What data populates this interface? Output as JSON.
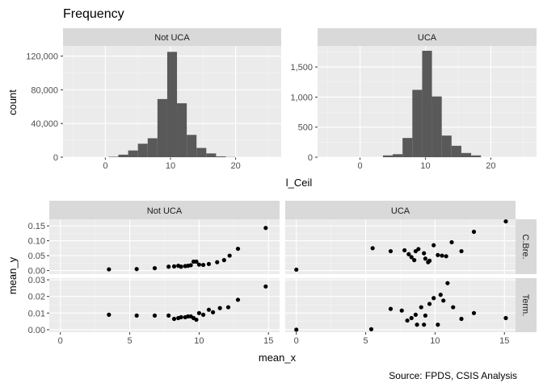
{
  "title": "Frequency",
  "source": "Source: FPDS, CSIS Analysis",
  "chart_data": [
    {
      "type": "bar",
      "subtype": "faceted-histogram",
      "xlabel": "l_Ceil",
      "ylabel": "count",
      "bin_width": 1.5,
      "grid": true,
      "facets": [
        {
          "label": "Not UCA",
          "xlim": [
            -6.5,
            27
          ],
          "ylim": [
            0,
            132000
          ],
          "x_ticks": [
            0,
            10,
            20
          ],
          "x_tick_labels": [
            "0",
            "10",
            "20"
          ],
          "y_ticks": [
            0,
            40000,
            80000,
            120000
          ],
          "y_tick_labels": [
            "0",
            "40,000",
            "80,000",
            "120,000"
          ],
          "bins": [
            {
              "x0": -1,
              "count": 0
            },
            {
              "x0": 0.5,
              "count": 500
            },
            {
              "x0": 2,
              "count": 3000
            },
            {
              "x0": 3.5,
              "count": 8000
            },
            {
              "x0": 5,
              "count": 16000
            },
            {
              "x0": 6.5,
              "count": 22500
            },
            {
              "x0": 8,
              "count": 69000
            },
            {
              "x0": 9.5,
              "count": 125000
            },
            {
              "x0": 11,
              "count": 64000
            },
            {
              "x0": 12.5,
              "count": 26500
            },
            {
              "x0": 14,
              "count": 11000
            },
            {
              "x0": 15.5,
              "count": 4500
            },
            {
              "x0": 17,
              "count": 1000
            },
            {
              "x0": 18.5,
              "count": 200
            },
            {
              "x0": 20,
              "count": 0
            }
          ]
        },
        {
          "label": "UCA",
          "xlim": [
            -6.5,
            27
          ],
          "ylim": [
            0,
            1850
          ],
          "x_ticks": [
            0,
            10,
            20
          ],
          "x_tick_labels": [
            "0",
            "10",
            "20"
          ],
          "y_ticks": [
            0,
            500,
            1000,
            1500
          ],
          "y_tick_labels": [
            "0",
            "500",
            "1,000",
            "1,500"
          ],
          "bins": [
            {
              "x0": 2,
              "count": 0
            },
            {
              "x0": 3.5,
              "count": 30
            },
            {
              "x0": 5,
              "count": 50
            },
            {
              "x0": 6.5,
              "count": 320
            },
            {
              "x0": 8,
              "count": 1120
            },
            {
              "x0": 9.5,
              "count": 1770
            },
            {
              "x0": 11,
              "count": 1010
            },
            {
              "x0": 12.5,
              "count": 360
            },
            {
              "x0": 14,
              "count": 190
            },
            {
              "x0": 15.5,
              "count": 70
            },
            {
              "x0": 17,
              "count": 30
            },
            {
              "x0": 18.5,
              "count": 0
            }
          ]
        }
      ]
    },
    {
      "type": "scatter",
      "subtype": "faceted-grid",
      "xlabel": "mean_x",
      "ylabel": "mean_y",
      "grid": true,
      "column_facets": [
        "Not UCA",
        "UCA"
      ],
      "row_facets": [
        "C.Bre.",
        "Term."
      ],
      "xlim": [
        -0.8,
        15.8
      ],
      "x_ticks": [
        0,
        5,
        10,
        15
      ],
      "x_tick_labels": [
        "0",
        "5",
        "10",
        "15"
      ],
      "rows": [
        {
          "label": "C.Bre.",
          "ylim": [
            -0.012,
            0.172
          ],
          "y_ticks": [
            0.0,
            0.05,
            0.1,
            0.15
          ],
          "y_tick_labels": [
            "0.00",
            "0.05",
            "0.10",
            "0.15"
          ]
        },
        {
          "label": "Term.",
          "ylim": [
            -0.0015,
            0.031
          ],
          "y_ticks": [
            0.0,
            0.01,
            0.02,
            0.03
          ],
          "y_tick_labels": [
            "0.00",
            "0.01",
            "0.02",
            "0.03"
          ]
        }
      ],
      "panels": [
        {
          "col": "Not UCA",
          "row": "C.Bre.",
          "points": [
            [
              3.5,
              0.004
            ],
            [
              5.5,
              0.005
            ],
            [
              6.8,
              0.008
            ],
            [
              7.8,
              0.013
            ],
            [
              8.2,
              0.014
            ],
            [
              8.5,
              0.016
            ],
            [
              8.7,
              0.013
            ],
            [
              9.0,
              0.015
            ],
            [
              9.2,
              0.016
            ],
            [
              9.4,
              0.018
            ],
            [
              9.6,
              0.03
            ],
            [
              9.8,
              0.03
            ],
            [
              10.0,
              0.02
            ],
            [
              10.3,
              0.019
            ],
            [
              10.7,
              0.022
            ],
            [
              11.3,
              0.028
            ],
            [
              11.8,
              0.035
            ],
            [
              12.2,
              0.05
            ],
            [
              12.8,
              0.073
            ],
            [
              14.8,
              0.143
            ]
          ]
        },
        {
          "col": "UCA",
          "row": "C.Bre.",
          "points": [
            [
              0.0,
              0.003
            ],
            [
              5.5,
              0.075
            ],
            [
              6.8,
              0.065
            ],
            [
              7.8,
              0.068
            ],
            [
              8.1,
              0.055
            ],
            [
              8.3,
              0.045
            ],
            [
              8.5,
              0.035
            ],
            [
              8.6,
              0.065
            ],
            [
              8.8,
              0.072
            ],
            [
              9.2,
              0.058
            ],
            [
              9.3,
              0.04
            ],
            [
              9.5,
              0.028
            ],
            [
              9.6,
              0.033
            ],
            [
              9.9,
              0.085
            ],
            [
              10.2,
              0.052
            ],
            [
              10.5,
              0.05
            ],
            [
              10.8,
              0.048
            ],
            [
              11.2,
              0.095
            ],
            [
              11.9,
              0.065
            ],
            [
              12.8,
              0.13
            ],
            [
              15.1,
              0.165
            ]
          ]
        },
        {
          "col": "Not UCA",
          "row": "Term.",
          "points": [
            [
              3.5,
              0.009
            ],
            [
              5.5,
              0.0085
            ],
            [
              6.8,
              0.0085
            ],
            [
              7.8,
              0.0085
            ],
            [
              8.2,
              0.0065
            ],
            [
              8.5,
              0.007
            ],
            [
              8.7,
              0.0075
            ],
            [
              9.0,
              0.0075
            ],
            [
              9.2,
              0.008
            ],
            [
              9.4,
              0.008
            ],
            [
              9.6,
              0.007
            ],
            [
              9.8,
              0.006
            ],
            [
              10.0,
              0.01
            ],
            [
              10.3,
              0.009
            ],
            [
              10.7,
              0.012
            ],
            [
              11.0,
              0.0105
            ],
            [
              11.5,
              0.013
            ],
            [
              12.1,
              0.0135
            ],
            [
              12.8,
              0.018
            ],
            [
              14.8,
              0.026
            ]
          ]
        },
        {
          "col": "UCA",
          "row": "Term.",
          "points": [
            [
              0.0,
              0.0
            ],
            [
              5.4,
              0.0003
            ],
            [
              6.8,
              0.0125
            ],
            [
              7.6,
              0.0115
            ],
            [
              8.0,
              0.0055
            ],
            [
              8.3,
              0.007
            ],
            [
              8.6,
              0.009
            ],
            [
              8.7,
              0.003
            ],
            [
              9.0,
              0.0135
            ],
            [
              9.2,
              0.003
            ],
            [
              9.3,
              0.0085
            ],
            [
              9.6,
              0.0155
            ],
            [
              9.9,
              0.019
            ],
            [
              10.2,
              0.003
            ],
            [
              10.4,
              0.021
            ],
            [
              10.6,
              0.0175
            ],
            [
              10.9,
              0.028
            ],
            [
              11.3,
              0.0135
            ],
            [
              11.9,
              0.0065
            ],
            [
              12.8,
              0.01
            ],
            [
              15.1,
              0.007
            ]
          ]
        }
      ]
    }
  ]
}
